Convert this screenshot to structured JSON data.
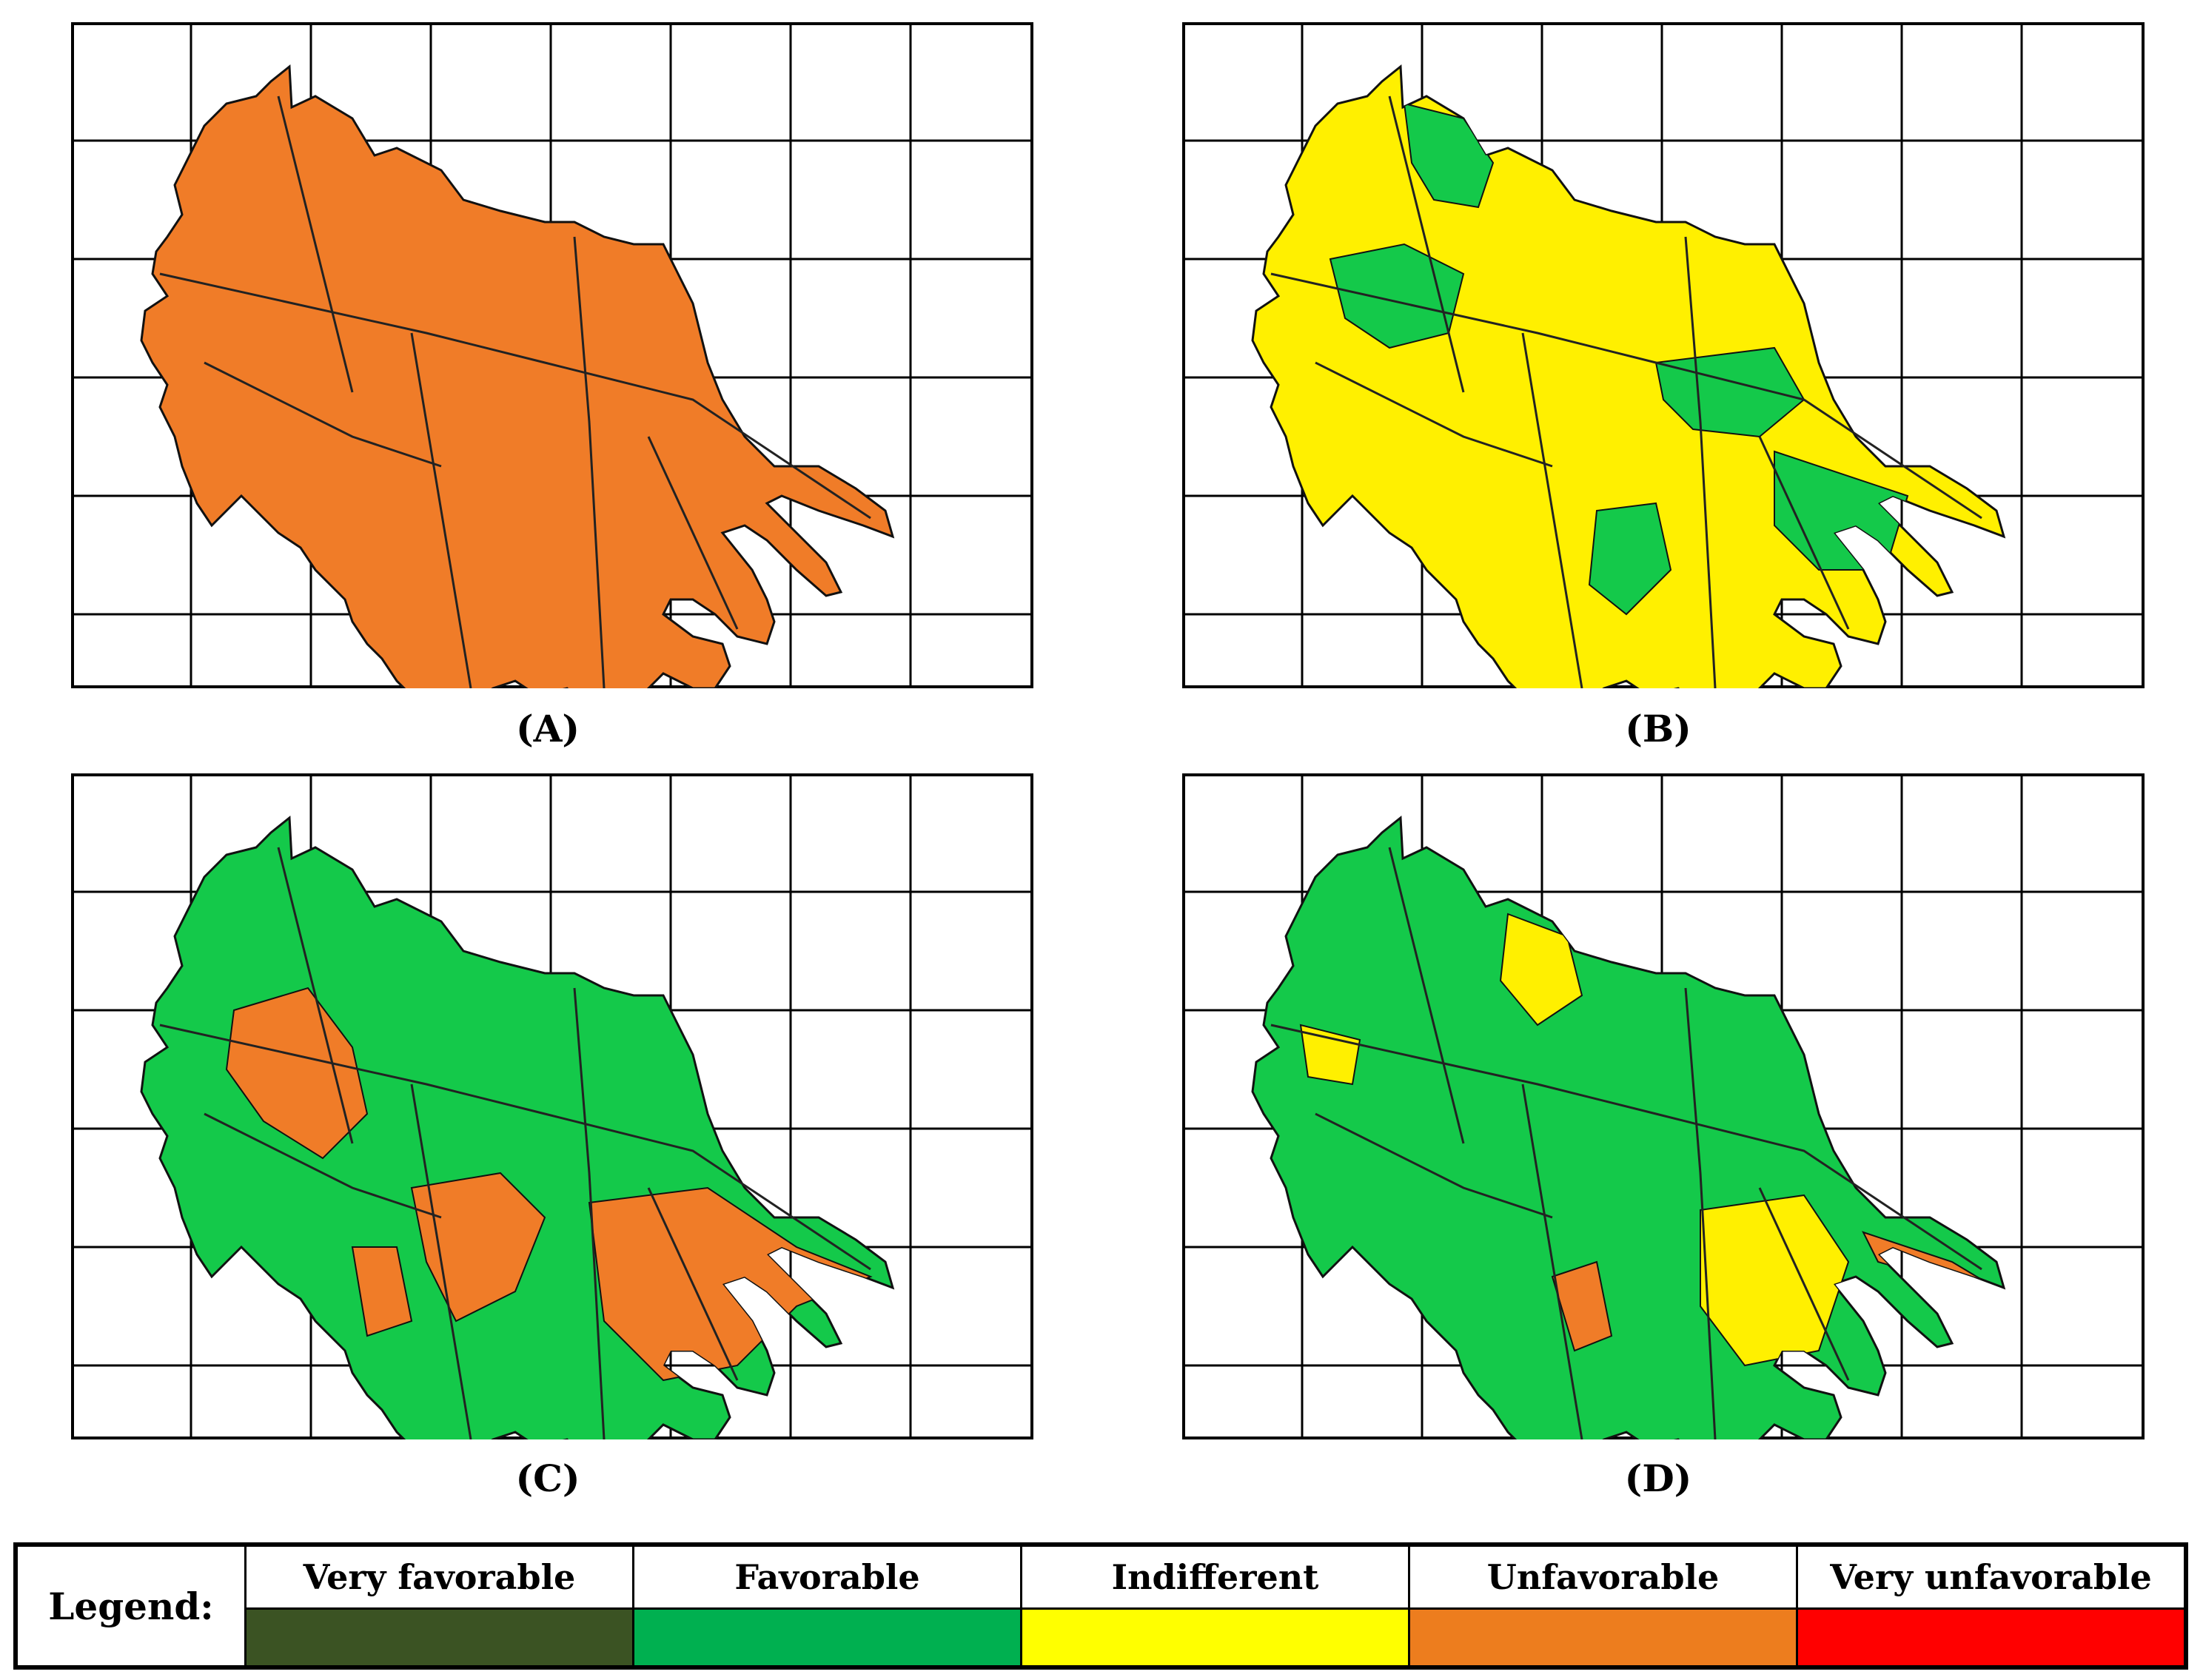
{
  "colors": {
    "very_favorable": "#3b5323",
    "favorable": "#00b050",
    "indifferent": "#ffff00",
    "unfavorable": "#ed7d1e",
    "very_unfavorable": "#ff0000",
    "map_green": "#14c94a",
    "map_yellow": "#fff000",
    "map_orange": "#f07c28"
  },
  "panels": [
    {
      "caption": "(A)",
      "base": "map_orange",
      "patches": []
    },
    {
      "caption": "(B)",
      "base": "map_yellow",
      "patches": [
        "map_green"
      ]
    },
    {
      "caption": "(C)",
      "base": "map_green",
      "patches": [
        "map_orange"
      ]
    },
    {
      "caption": "(D)",
      "base": "map_green",
      "patches": [
        "map_yellow",
        "map_orange"
      ]
    }
  ],
  "legend": {
    "title": "Legend:",
    "items": [
      {
        "label": "Very favorable",
        "color": "#3b5323"
      },
      {
        "label": "Favorable",
        "color": "#00b050"
      },
      {
        "label": "Indifferent",
        "color": "#ffff00"
      },
      {
        "label": "Unfavorable",
        "color": "#ed7d1e"
      },
      {
        "label": "Very unfavorable",
        "color": "#ff0000"
      }
    ]
  }
}
